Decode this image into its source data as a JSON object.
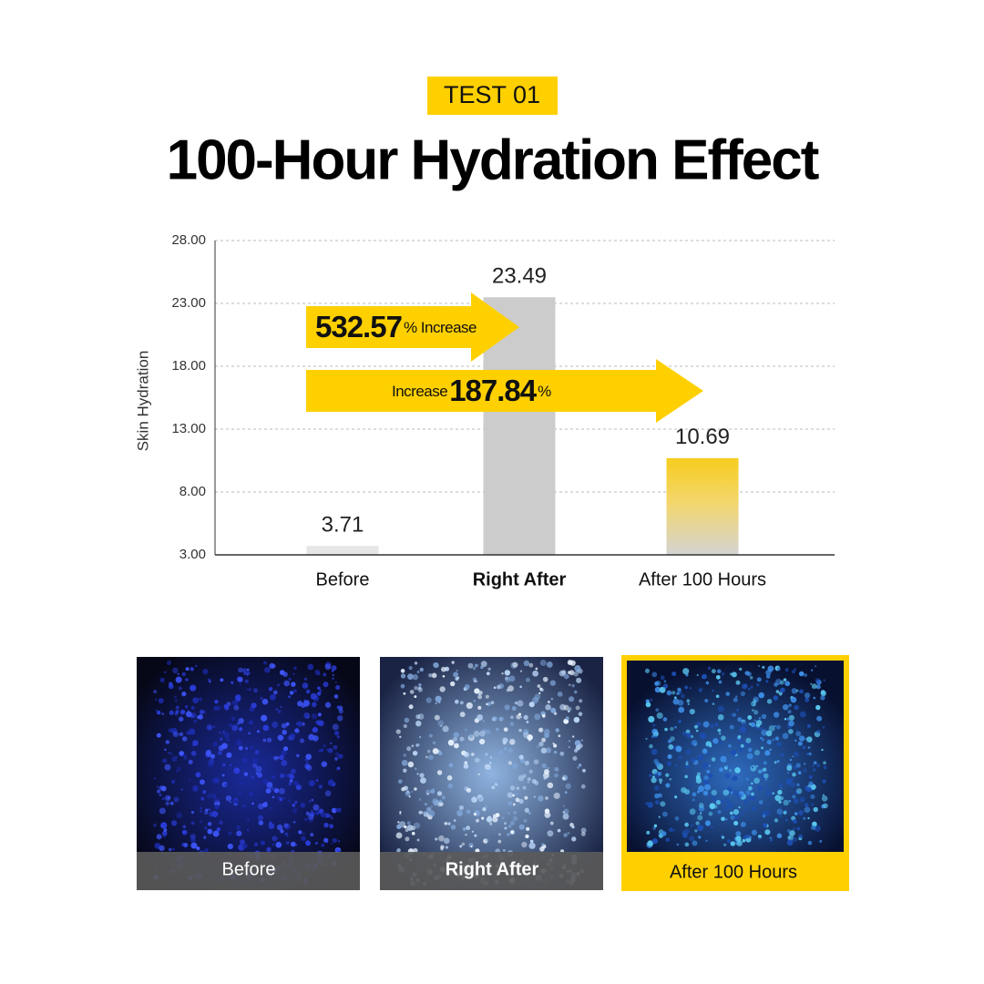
{
  "badge": "TEST 01",
  "title": "100-Hour Hydration Effect",
  "chart_data": {
    "type": "bar",
    "y_label": "Skin Hydration",
    "categories": [
      "Before",
      "Right After",
      "After 100 Hours"
    ],
    "values": [
      3.71,
      23.49,
      10.69
    ],
    "colors": [
      "#e6e6e6",
      "#cccccc",
      "#f7cd1f"
    ],
    "ylim": [
      3,
      28
    ],
    "yticks": [
      {
        "value": 3,
        "label": "3.00"
      },
      {
        "value": 8,
        "label": "8.00"
      },
      {
        "value": 13,
        "label": "13.00"
      },
      {
        "value": 18,
        "label": "18.00"
      },
      {
        "value": 23,
        "label": "23.00"
      },
      {
        "value": 28,
        "label": "28.00"
      }
    ],
    "grid": true,
    "annotations": [
      {
        "parts": [
          "532.57",
          "% Increase"
        ]
      },
      {
        "parts": [
          "Increase",
          "187.84",
          "%"
        ]
      }
    ]
  },
  "images": [
    {
      "caption": "Before"
    },
    {
      "caption": "Right After"
    },
    {
      "caption": "After 100 Hours"
    }
  ]
}
